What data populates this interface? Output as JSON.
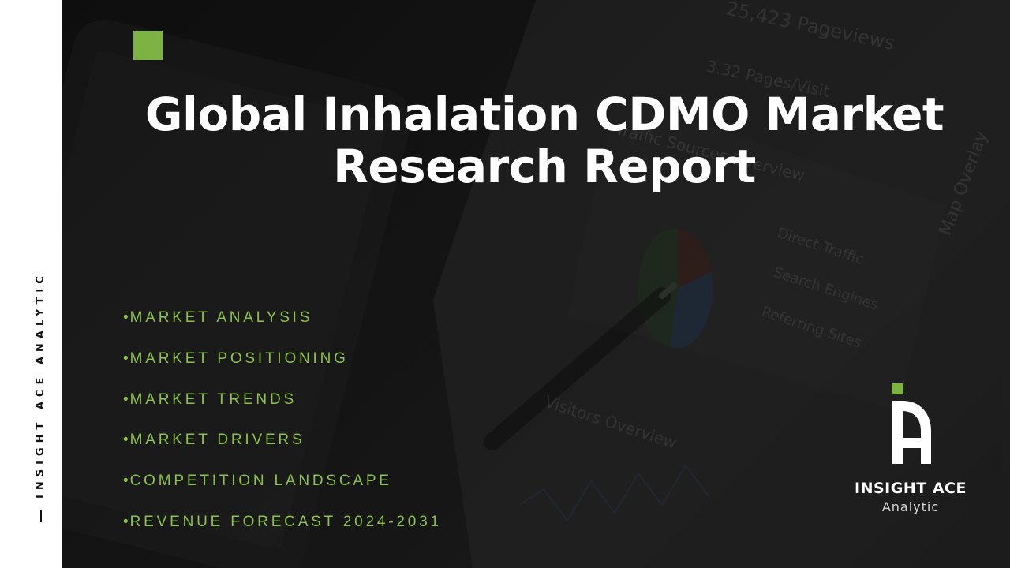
{
  "side_label": "INSIGHT ACE ANALYTIC",
  "title": {
    "line1": "Global Inhalation CDMO Market",
    "line2": "Research Report"
  },
  "bullets": [
    "MARKET ANALYSIS",
    "MARKET POSITIONING",
    "MARKET TRENDS",
    "MARKET DRIVERS",
    "COMPETITION LANDSCAPE",
    "REVENUE FORECAST 2024-2031"
  ],
  "bullet_marker": "•",
  "logo": {
    "name": "INSIGHT ACE",
    "sub": "Analytic"
  },
  "background_text": {
    "pageviews": "25,423 Pageviews",
    "pages_visit": "3.32 Pages/Visit",
    "traffic_sources": "Traffic Sources Overview",
    "direct": "Direct Traffic",
    "search": "Search Engines",
    "referring": "Referring Sites",
    "visitors": "Visitors Overview",
    "map": "Map Overlay"
  },
  "colors": {
    "accent": "#7cb342",
    "bullet_text": "#8bc34a",
    "title": "#ffffff",
    "side_strip": "#ffffff"
  }
}
